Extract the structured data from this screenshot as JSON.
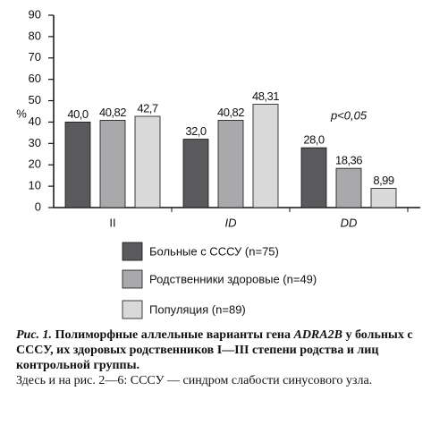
{
  "chart_data": {
    "type": "bar",
    "categories": [
      "II",
      "ID",
      "DD"
    ],
    "series": [
      {
        "name": "Больные с СССУ (n=75)",
        "color": "#5a5a5c",
        "values": [
          40.0,
          32.0,
          28.0
        ],
        "value_labels": [
          "40,0",
          "32,0",
          "28,0"
        ]
      },
      {
        "name": "Родственники здоровые (n=49)",
        "color": "#a9a9ab",
        "values": [
          40.82,
          40.82,
          18.36
        ],
        "value_labels": [
          "40,82",
          "40,82",
          "18,36"
        ]
      },
      {
        "name": "Популяция (n=89)",
        "color": "#d9d9d9",
        "values": [
          42.7,
          48.31,
          8.99
        ],
        "value_labels": [
          "42,7",
          "48,31",
          "8,99"
        ]
      }
    ],
    "ylabel": "%",
    "annotation": "p<0,05",
    "ylim": [
      0,
      90
    ],
    "yticks": [
      0,
      10,
      20,
      30,
      40,
      50,
      60,
      70,
      80,
      90
    ]
  },
  "caption": {
    "label": "Рис. 1.",
    "title": [
      "Полиморфные аллельные варианты гена ",
      "ADRA2B",
      " у больных с СССУ, их здоровых родственников I—III степени родства и лиц контрольной группы."
    ],
    "note": "Здесь и на рис. 2—6: СССУ — синдром слабости синусового узла."
  }
}
